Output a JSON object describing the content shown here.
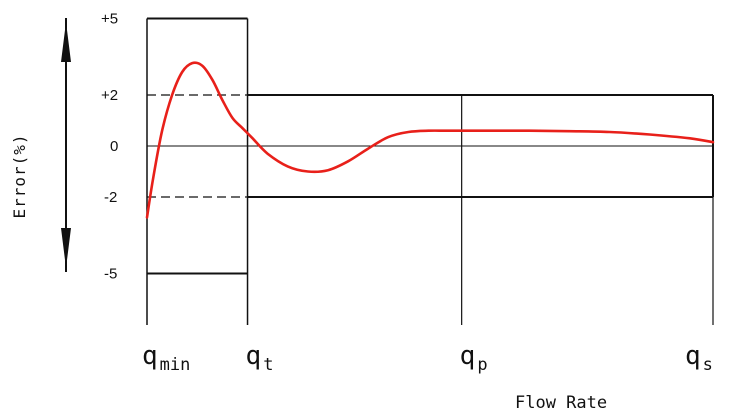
{
  "chart_data": {
    "type": "line",
    "title": "",
    "xlabel": "Flow Rate",
    "ylabel": "Error(%)",
    "y_ticks": [
      "+5",
      "+2",
      "0",
      "-2",
      "-5"
    ],
    "y_tick_values": [
      5,
      2,
      0,
      -2,
      -5
    ],
    "x_ticks": [
      {
        "main": "q",
        "sub": "min",
        "position": 0
      },
      {
        "main": "q",
        "sub": "t",
        "position": 1
      },
      {
        "main": "q",
        "sub": "p",
        "position": 3.13
      },
      {
        "main": "q",
        "sub": "s",
        "position": 5.63
      }
    ],
    "error_limits": [
      {
        "from": 0,
        "to": 1,
        "upper": 5,
        "lower": -5
      },
      {
        "from": 1,
        "to": 5.63,
        "upper": 2,
        "lower": -2
      }
    ],
    "series": [
      {
        "color": "#e8201a",
        "x": [
          0,
          0.06,
          0.15,
          0.25,
          0.35,
          0.45,
          0.55,
          0.65,
          0.75,
          0.85,
          0.95,
          1.05,
          1.2,
          1.4,
          1.6,
          1.8,
          2.0,
          2.2,
          2.4,
          2.6,
          2.8,
          3.0,
          3.4,
          3.8,
          4.2,
          4.6,
          5.0,
          5.4,
          5.63
        ],
        "y": [
          -2.8,
          -1.3,
          0.6,
          2.0,
          2.9,
          3.25,
          3.15,
          2.6,
          1.8,
          1.1,
          0.7,
          0.3,
          -0.3,
          -0.8,
          -1.0,
          -0.95,
          -0.6,
          -0.1,
          0.35,
          0.55,
          0.6,
          0.6,
          0.6,
          0.6,
          0.58,
          0.55,
          0.45,
          0.3,
          0.15
        ]
      }
    ]
  }
}
